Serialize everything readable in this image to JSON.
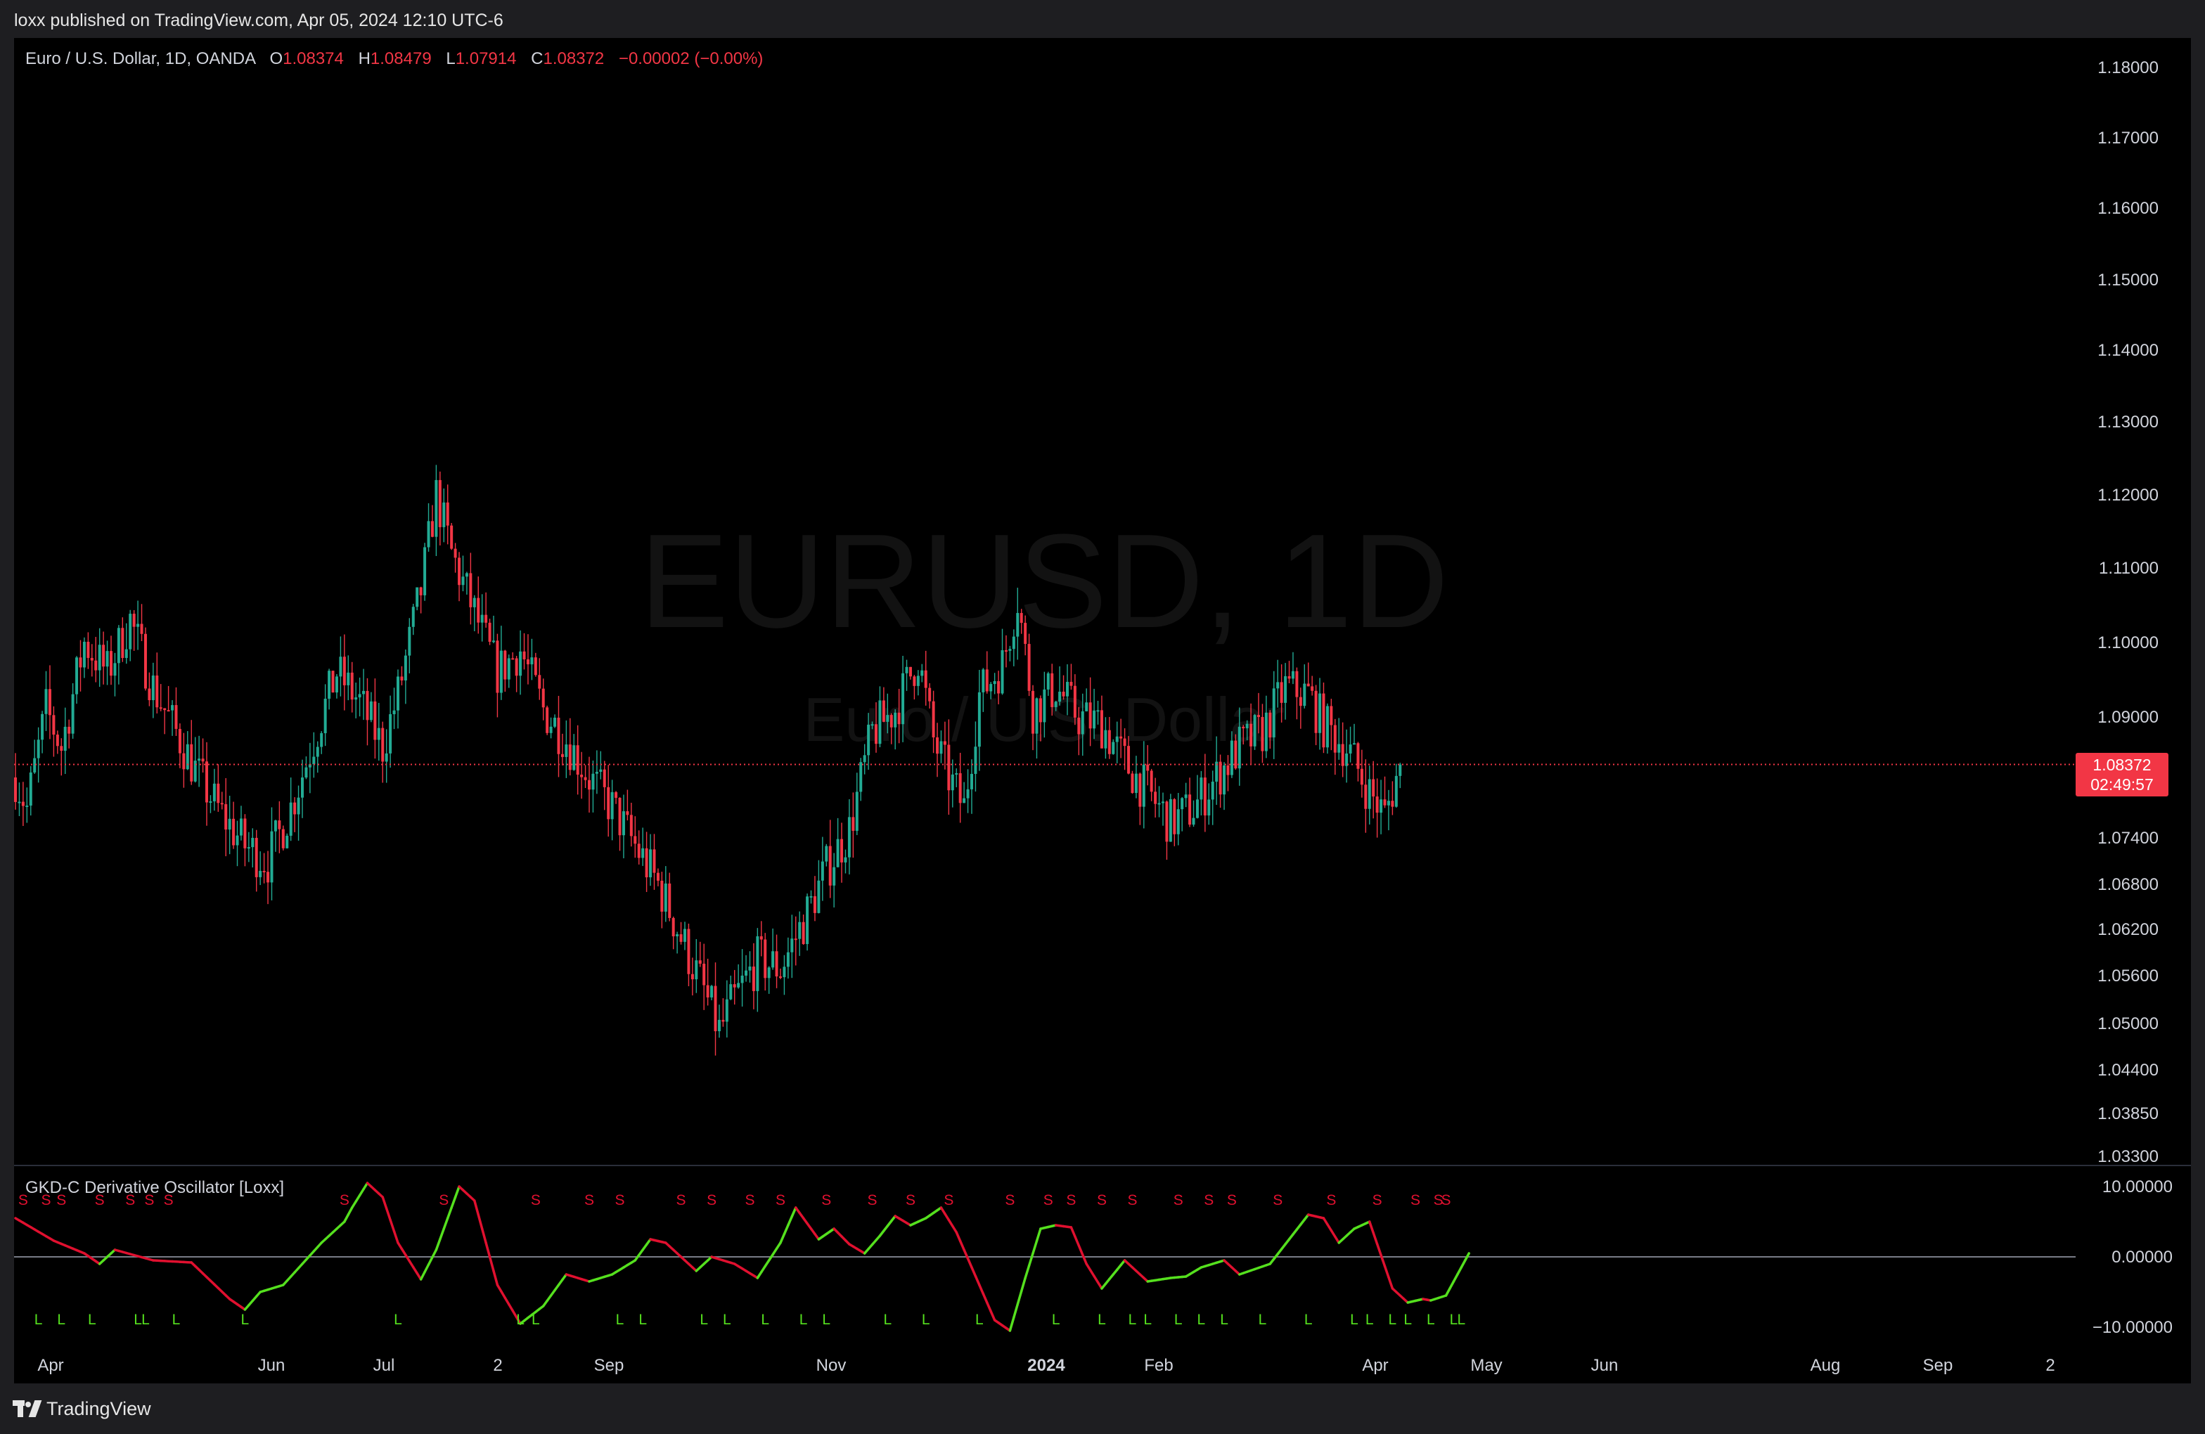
{
  "header": {
    "published": "loxx published on TradingView.com, Apr 05, 2024 12:10 UTC-6"
  },
  "legend": {
    "symbol": "Euro / U.S. Dollar, 1D, OANDA",
    "o_label": "O",
    "o": "1.08374",
    "h_label": "H",
    "h": "1.08479",
    "l_label": "L",
    "l": "1.07914",
    "c_label": "C",
    "c": "1.08372",
    "change": "−0.00002 (−0.00%)"
  },
  "watermark": {
    "symbol": "EURUSD, 1D",
    "name": "Euro / U.S. Dollar"
  },
  "price_tag": {
    "price": "1.08372",
    "countdown": "02:49:57"
  },
  "oscillator": {
    "title": "GKD-C Derivative Oscillator [Loxx]"
  },
  "footer": {
    "brand": "TradingView"
  },
  "colors": {
    "up": "#22ab94",
    "down": "#f23645",
    "osc_up": "#55e01e",
    "osc_down": "#e0102f",
    "axis_text": "#d1d4dc"
  },
  "chart_data": {
    "type": "candlestick",
    "price_axis": {
      "ticks": [
        "1.18000",
        "1.17000",
        "1.16000",
        "1.15000",
        "1.14000",
        "1.13000",
        "1.12000",
        "1.11000",
        "1.10000",
        "1.09000",
        "1.07400",
        "1.06800",
        "1.06200",
        "1.05600",
        "1.05000",
        "1.04400",
        "1.03850",
        "1.03300"
      ]
    },
    "osc_axis": {
      "ticks": [
        "10.00000",
        "0.00000",
        "−10.00000"
      ]
    },
    "time_axis": {
      "labels": [
        "Apr",
        "Jun",
        "Jul",
        "2",
        "Sep",
        "Nov",
        "2024",
        "Feb",
        "Apr",
        "May",
        "Jun",
        "Aug",
        "Sep",
        "2"
      ]
    },
    "last_price": 1.08372,
    "price_path": [
      [
        0,
        1.082
      ],
      [
        3,
        1.078
      ],
      [
        8,
        1.091
      ],
      [
        12,
        1.086
      ],
      [
        18,
        1.1
      ],
      [
        24,
        1.096
      ],
      [
        30,
        1.103
      ],
      [
        36,
        1.094
      ],
      [
        42,
        1.088
      ],
      [
        48,
        1.082
      ],
      [
        54,
        1.077
      ],
      [
        60,
        1.073
      ],
      [
        66,
        1.071
      ],
      [
        72,
        1.078
      ],
      [
        78,
        1.087
      ],
      [
        84,
        1.096
      ],
      [
        90,
        1.092
      ],
      [
        96,
        1.086
      ],
      [
        100,
        1.093
      ],
      [
        106,
        1.107
      ],
      [
        110,
        1.12
      ],
      [
        114,
        1.112
      ],
      [
        120,
        1.104
      ],
      [
        126,
        1.096
      ],
      [
        132,
        1.099
      ],
      [
        138,
        1.091
      ],
      [
        144,
        1.087
      ],
      [
        150,
        1.082
      ],
      [
        156,
        1.078
      ],
      [
        162,
        1.073
      ],
      [
        168,
        1.068
      ],
      [
        174,
        1.061
      ],
      [
        180,
        1.054
      ],
      [
        184,
        1.049
      ],
      [
        188,
        1.053
      ],
      [
        194,
        1.058
      ],
      [
        200,
        1.057
      ],
      [
        206,
        1.063
      ],
      [
        212,
        1.07
      ],
      [
        218,
        1.075
      ],
      [
        224,
        1.088
      ],
      [
        230,
        1.091
      ],
      [
        236,
        1.098
      ],
      [
        240,
        1.087
      ],
      [
        244,
        1.082
      ],
      [
        248,
        1.078
      ],
      [
        252,
        1.093
      ],
      [
        258,
        1.097
      ],
      [
        262,
        1.106
      ],
      [
        266,
        1.091
      ],
      [
        272,
        1.094
      ],
      [
        278,
        1.09
      ],
      [
        284,
        1.089
      ],
      [
        290,
        1.084
      ],
      [
        296,
        1.08
      ],
      [
        302,
        1.076
      ],
      [
        308,
        1.078
      ],
      [
        314,
        1.082
      ],
      [
        320,
        1.086
      ],
      [
        326,
        1.088
      ],
      [
        332,
        1.094
      ],
      [
        338,
        1.093
      ],
      [
        342,
        1.089
      ],
      [
        348,
        1.086
      ],
      [
        354,
        1.08
      ],
      [
        358,
        1.077
      ],
      [
        362,
        1.0837
      ]
    ],
    "osc_path": [
      [
        0,
        5.5
      ],
      [
        10,
        2.3
      ],
      [
        18,
        0.5
      ],
      [
        22,
        -1
      ],
      [
        26,
        1
      ],
      [
        36,
        -0.5
      ],
      [
        46,
        -0.8
      ],
      [
        56,
        -6
      ],
      [
        60,
        -7.5
      ],
      [
        64,
        -5
      ],
      [
        70,
        -4
      ],
      [
        80,
        2
      ],
      [
        86,
        5
      ],
      [
        88,
        7
      ],
      [
        92,
        10.5
      ],
      [
        96,
        8.5
      ],
      [
        100,
        2
      ],
      [
        106,
        -3.2
      ],
      [
        110,
        1
      ],
      [
        116,
        10
      ],
      [
        120,
        8
      ],
      [
        126,
        -4
      ],
      [
        132,
        -9.5
      ],
      [
        138,
        -7
      ],
      [
        144,
        -2.5
      ],
      [
        150,
        -3.5
      ],
      [
        156,
        -2.5
      ],
      [
        162,
        -0.5
      ],
      [
        166,
        2.5
      ],
      [
        170,
        2
      ],
      [
        174,
        0
      ],
      [
        178,
        -2
      ],
      [
        182,
        0
      ],
      [
        188,
        -1
      ],
      [
        194,
        -3
      ],
      [
        200,
        2
      ],
      [
        204,
        7
      ],
      [
        210,
        2.5
      ],
      [
        214,
        4
      ],
      [
        218,
        1.8
      ],
      [
        222,
        0.5
      ],
      [
        226,
        3
      ],
      [
        230,
        5.8
      ],
      [
        234,
        4.5
      ],
      [
        238,
        5.5
      ],
      [
        242,
        7
      ],
      [
        246,
        3.5
      ],
      [
        252,
        -4
      ],
      [
        256,
        -9
      ],
      [
        260,
        -10.5
      ],
      [
        264,
        -3
      ],
      [
        268,
        4
      ],
      [
        272,
        4.5
      ],
      [
        276,
        4.2
      ],
      [
        280,
        -1
      ],
      [
        284,
        -4.5
      ],
      [
        290,
        -0.5
      ],
      [
        296,
        -3.5
      ],
      [
        302,
        -3
      ],
      [
        306,
        -2.8
      ],
      [
        310,
        -1.5
      ],
      [
        316,
        -0.5
      ],
      [
        320,
        -2.5
      ],
      [
        328,
        -1
      ],
      [
        338,
        6
      ],
      [
        342,
        5.5
      ],
      [
        346,
        2
      ],
      [
        350,
        4
      ],
      [
        354,
        5
      ],
      [
        360,
        -4.5
      ],
      [
        364,
        -6.5
      ],
      [
        368,
        -6
      ],
      [
        370,
        -6.2
      ],
      [
        374,
        -5.5
      ],
      [
        380,
        0.5
      ]
    ],
    "s_markers": [
      2,
      8,
      12,
      22,
      30,
      35,
      40,
      86,
      112,
      136,
      150,
      158,
      174,
      182,
      192,
      200,
      212,
      224,
      234,
      244,
      260,
      270,
      276,
      284,
      292,
      304,
      312,
      318,
      330,
      344,
      356,
      366,
      372,
      374
    ],
    "l_markers": [
      6,
      12,
      20,
      32,
      34,
      42,
      60,
      100,
      132,
      136,
      158,
      164,
      180,
      186,
      196,
      206,
      212,
      228,
      238,
      252,
      272,
      284,
      292,
      296,
      304,
      310,
      316,
      326,
      338,
      350,
      354,
      360,
      364,
      370,
      376,
      378
    ]
  }
}
